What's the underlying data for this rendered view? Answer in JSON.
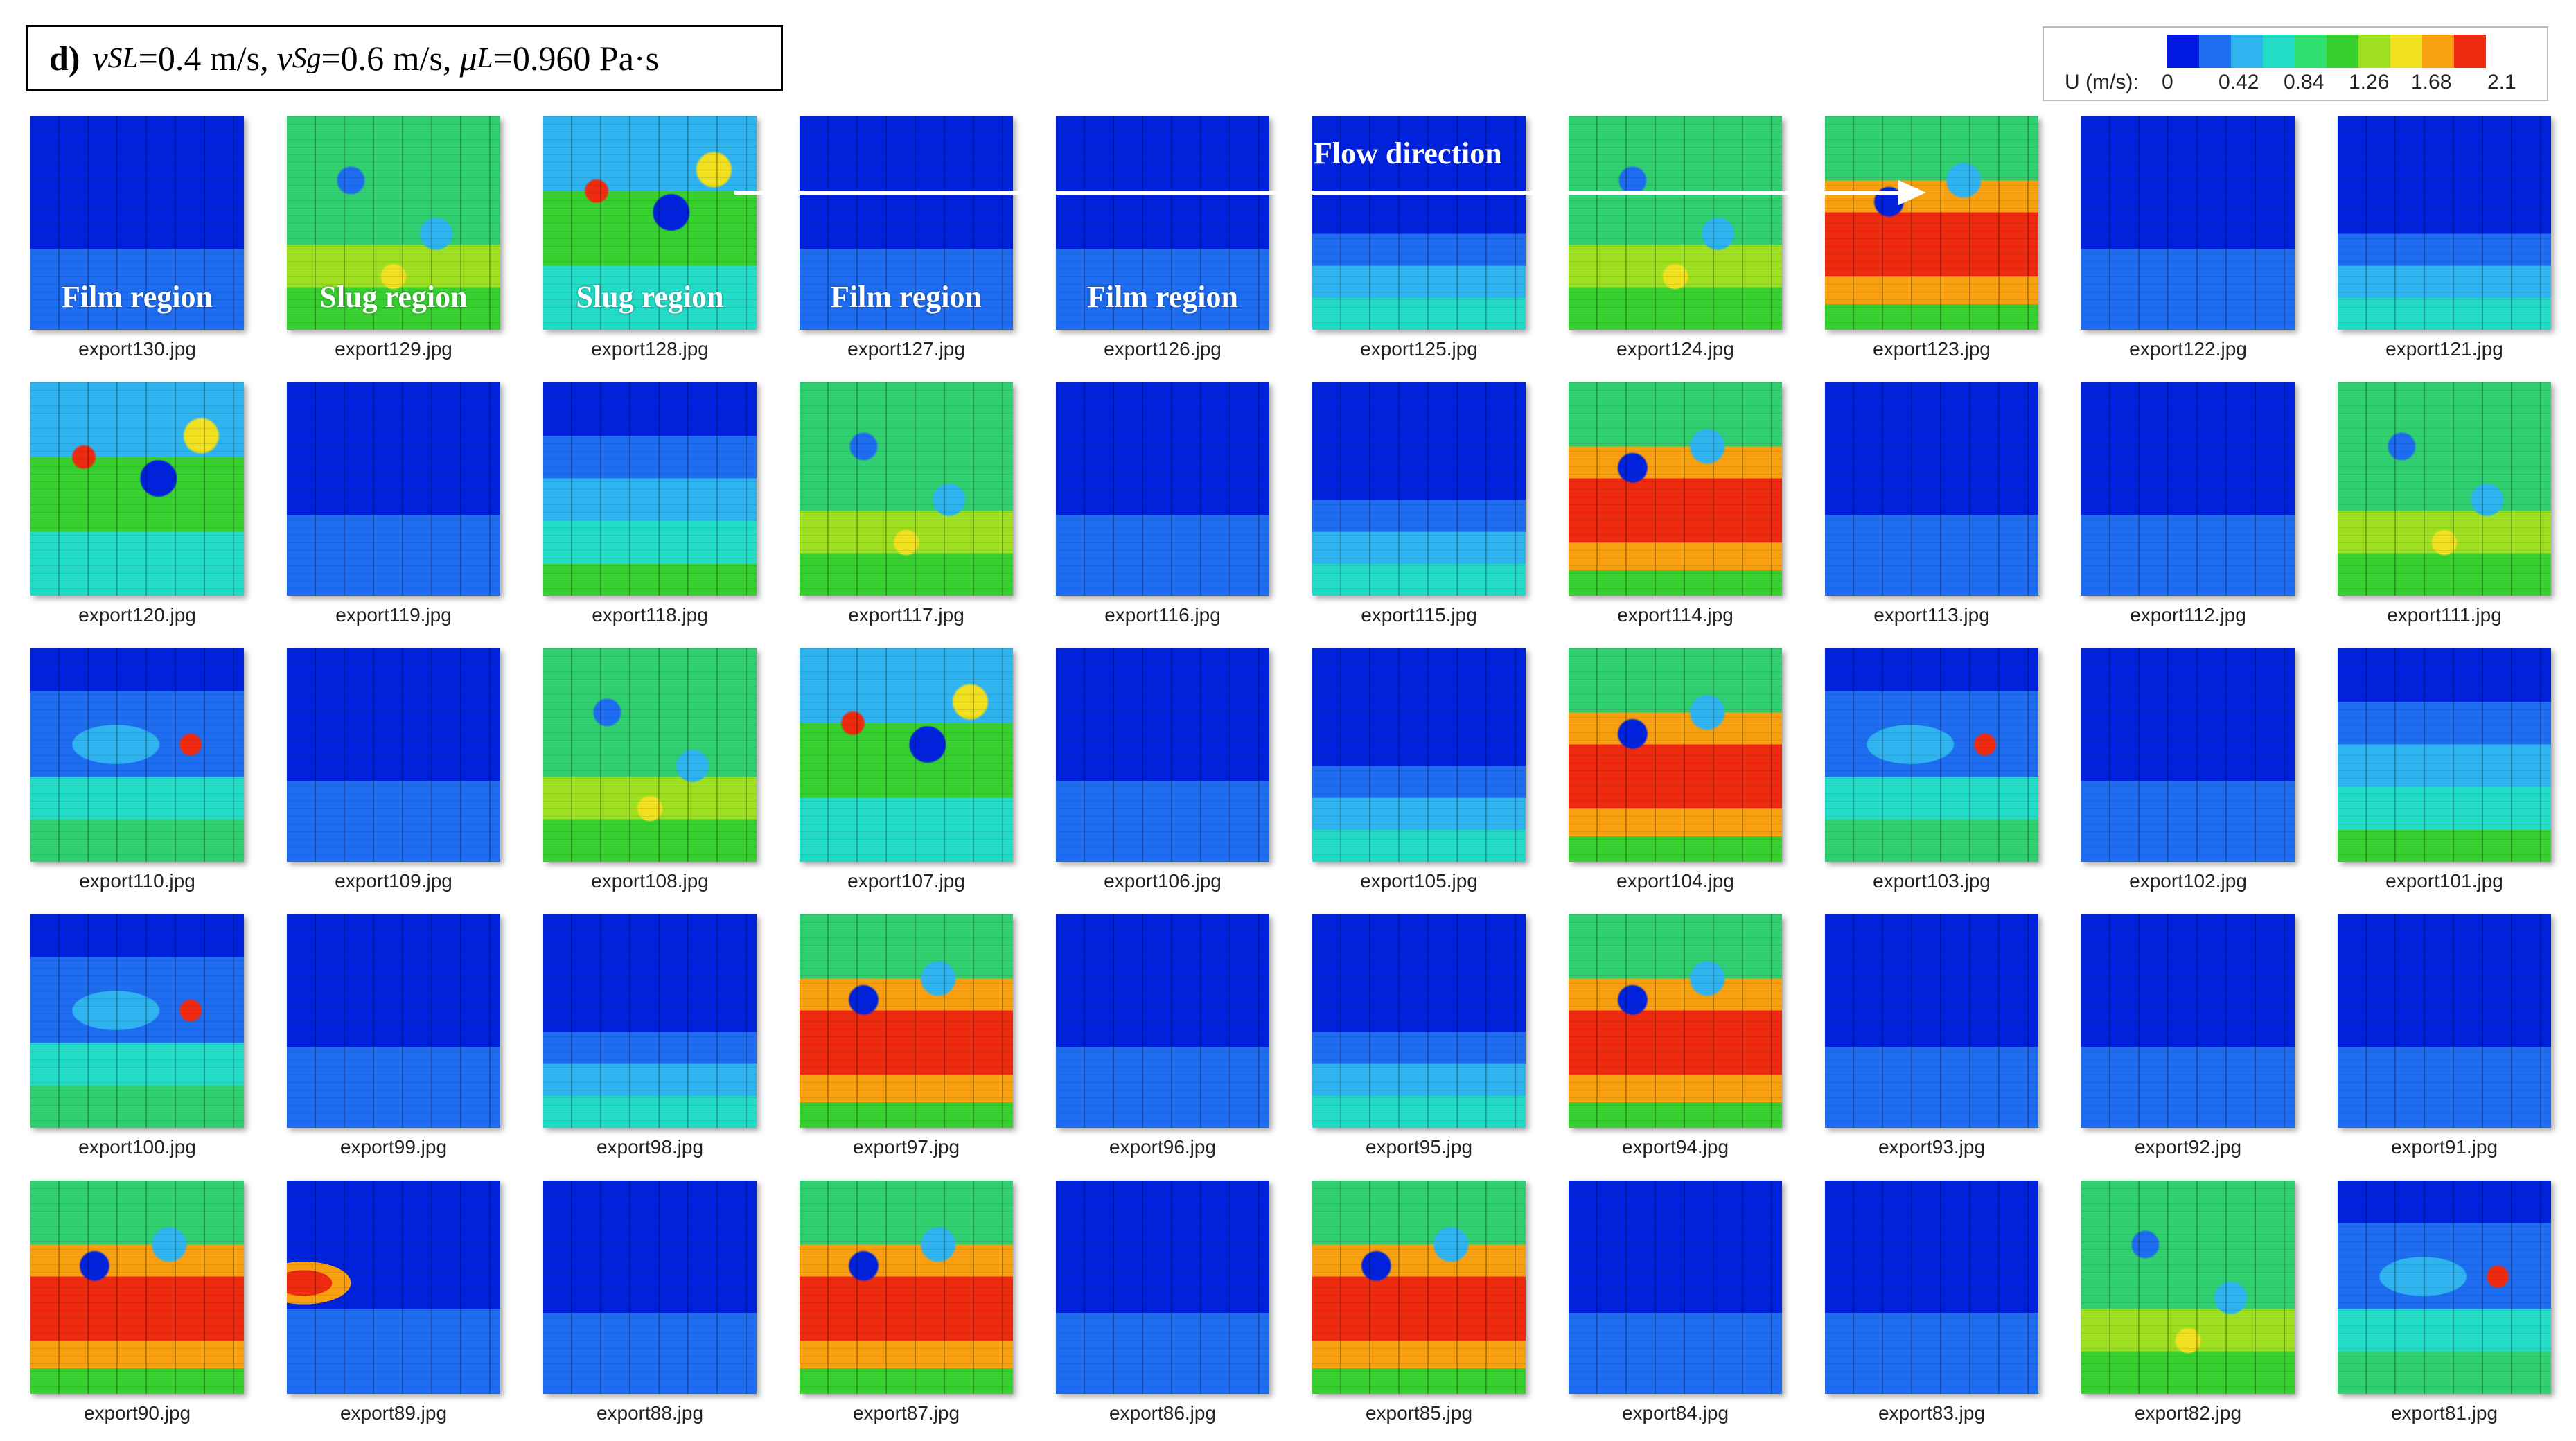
{
  "title": {
    "panel": "d)",
    "vsl_symbol": "v",
    "vsl_sub": "SL",
    "vsl_value": "=0.4 m/s,",
    "vsg_symbol": "v",
    "vsg_sub": "Sg",
    "vsg_value": "=0.6 m/s,",
    "mu_symbol": "μ",
    "mu_sub": "L",
    "mu_value": "=0.960 Pa·s"
  },
  "legend": {
    "label": "U (m/s):",
    "ticks": [
      "0",
      "0.42",
      "0.84",
      "1.26",
      "1.68",
      "2.1"
    ],
    "colors": [
      "#0018e0",
      "#1e6cf0",
      "#2fb4f0",
      "#22dcc8",
      "#30e070",
      "#38d030",
      "#9ee020",
      "#f0e020",
      "#f8a010",
      "#ee2a10"
    ]
  },
  "flow_direction": "Flow direction",
  "tiles": [
    {
      "file": "export130.jpg",
      "label": "Film region",
      "pattern": "film-low"
    },
    {
      "file": "export129.jpg",
      "label": "Slug region",
      "pattern": "slug-green"
    },
    {
      "file": "export128.jpg",
      "label": "Slug region",
      "pattern": "slug-mixed"
    },
    {
      "file": "export127.jpg",
      "label": "Film region",
      "pattern": "film-low"
    },
    {
      "file": "export126.jpg",
      "label": "Film region",
      "pattern": "film-low"
    },
    {
      "file": "export125.jpg",
      "label": "",
      "pattern": "film-mid"
    },
    {
      "file": "export124.jpg",
      "label": "",
      "pattern": "slug-green"
    },
    {
      "file": "export123.jpg",
      "label": "",
      "pattern": "slug-hot"
    },
    {
      "file": "export122.jpg",
      "label": "",
      "pattern": "film-low"
    },
    {
      "file": "export121.jpg",
      "label": "",
      "pattern": "film-mid"
    },
    {
      "file": "export120.jpg",
      "label": "",
      "pattern": "slug-mixed"
    },
    {
      "file": "export119.jpg",
      "label": "",
      "pattern": "film-low"
    },
    {
      "file": "export118.jpg",
      "label": "",
      "pattern": "film-high"
    },
    {
      "file": "export117.jpg",
      "label": "",
      "pattern": "slug-green"
    },
    {
      "file": "export116.jpg",
      "label": "",
      "pattern": "film-low"
    },
    {
      "file": "export115.jpg",
      "label": "",
      "pattern": "film-mid"
    },
    {
      "file": "export114.jpg",
      "label": "",
      "pattern": "slug-hot"
    },
    {
      "file": "export113.jpg",
      "label": "",
      "pattern": "film-low"
    },
    {
      "file": "export112.jpg",
      "label": "",
      "pattern": "film-low"
    },
    {
      "file": "export111.jpg",
      "label": "",
      "pattern": "slug-green"
    },
    {
      "file": "export110.jpg",
      "label": "",
      "pattern": "slug-front"
    },
    {
      "file": "export109.jpg",
      "label": "",
      "pattern": "film-low"
    },
    {
      "file": "export108.jpg",
      "label": "",
      "pattern": "slug-green"
    },
    {
      "file": "export107.jpg",
      "label": "",
      "pattern": "slug-mixed"
    },
    {
      "file": "export106.jpg",
      "label": "",
      "pattern": "film-low"
    },
    {
      "file": "export105.jpg",
      "label": "",
      "pattern": "film-mid"
    },
    {
      "file": "export104.jpg",
      "label": "",
      "pattern": "slug-hot"
    },
    {
      "file": "export103.jpg",
      "label": "",
      "pattern": "slug-front"
    },
    {
      "file": "export102.jpg",
      "label": "",
      "pattern": "film-low"
    },
    {
      "file": "export101.jpg",
      "label": "",
      "pattern": "film-high"
    },
    {
      "file": "export100.jpg",
      "label": "",
      "pattern": "slug-front"
    },
    {
      "file": "export99.jpg",
      "label": "",
      "pattern": "film-low"
    },
    {
      "file": "export98.jpg",
      "label": "",
      "pattern": "film-mid"
    },
    {
      "file": "export97.jpg",
      "label": "",
      "pattern": "slug-hot"
    },
    {
      "file": "export96.jpg",
      "label": "",
      "pattern": "film-low"
    },
    {
      "file": "export95.jpg",
      "label": "",
      "pattern": "film-mid"
    },
    {
      "file": "export94.jpg",
      "label": "",
      "pattern": "slug-hot"
    },
    {
      "file": "export93.jpg",
      "label": "",
      "pattern": "film-low"
    },
    {
      "file": "export92.jpg",
      "label": "",
      "pattern": "film-low"
    },
    {
      "file": "export91.jpg",
      "label": "",
      "pattern": "film-low"
    },
    {
      "file": "export90.jpg",
      "label": "",
      "pattern": "slug-hot"
    },
    {
      "file": "export89.jpg",
      "label": "",
      "pattern": "film-nose"
    },
    {
      "file": "export88.jpg",
      "label": "",
      "pattern": "film-low"
    },
    {
      "file": "export87.jpg",
      "label": "",
      "pattern": "slug-hot"
    },
    {
      "file": "export86.jpg",
      "label": "",
      "pattern": "film-low"
    },
    {
      "file": "export85.jpg",
      "label": "",
      "pattern": "slug-hot"
    },
    {
      "file": "export84.jpg",
      "label": "",
      "pattern": "film-low"
    },
    {
      "file": "export83.jpg",
      "label": "",
      "pattern": "film-low"
    },
    {
      "file": "export82.jpg",
      "label": "",
      "pattern": "slug-green"
    },
    {
      "file": "export81.jpg",
      "label": "",
      "pattern": "slug-front"
    }
  ]
}
